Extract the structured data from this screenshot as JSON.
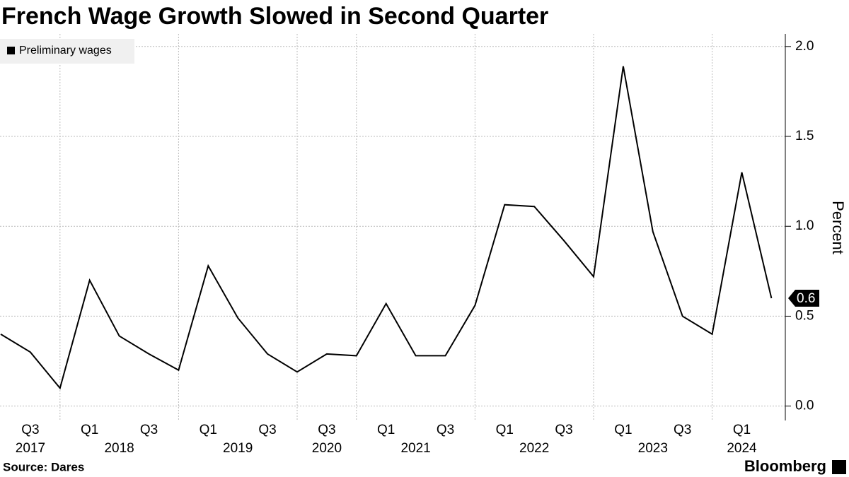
{
  "chart_data": {
    "type": "line",
    "title": "French Wage Growth Slowed in Second Quarter",
    "y_label": "Percent",
    "source": "Source: Dares",
    "brand": "Bloomberg",
    "categories": [
      null,
      "Q3",
      null,
      "Q1",
      null,
      "Q3",
      null,
      "Q1",
      null,
      "Q3",
      null,
      "Q3",
      null,
      "Q1",
      null,
      "Q3",
      null,
      "Q1",
      null,
      "Q3",
      null,
      "Q1",
      null,
      "Q3",
      null,
      "Q1",
      null
    ],
    "years": [
      {
        "label": "2017",
        "from": 0,
        "to": 2
      },
      {
        "label": "2018",
        "from": 2,
        "to": 6
      },
      {
        "label": "2019",
        "from": 6,
        "to": 10
      },
      {
        "label": "2020",
        "from": 10,
        "to": 12
      },
      {
        "label": "2021",
        "from": 12,
        "to": 16
      },
      {
        "label": "2022",
        "from": 16,
        "to": 20
      },
      {
        "label": "2023",
        "from": 20,
        "to": 24
      },
      {
        "label": "2024",
        "from": 24,
        "to": 26
      }
    ],
    "series": [
      {
        "name": "Preliminary wages",
        "color": "#000000",
        "values": [
          0.4,
          0.3,
          0.1,
          0.7,
          0.39,
          0.29,
          0.2,
          0.78,
          0.49,
          0.29,
          0.19,
          0.29,
          0.28,
          0.57,
          0.28,
          0.28,
          0.56,
          1.12,
          1.11,
          0.92,
          0.72,
          1.89,
          0.97,
          0.5,
          0.4,
          1.3,
          0.6
        ]
      }
    ],
    "ylim": [
      -0.08,
      2.07
    ],
    "yticks": [
      {
        "value": 0,
        "label": "0.0"
      },
      0.5,
      {
        "value": 1,
        "label": "1.0"
      },
      1.5,
      {
        "value": 2,
        "label": "2.0"
      }
    ],
    "grid": true,
    "legend": "top-left"
  }
}
